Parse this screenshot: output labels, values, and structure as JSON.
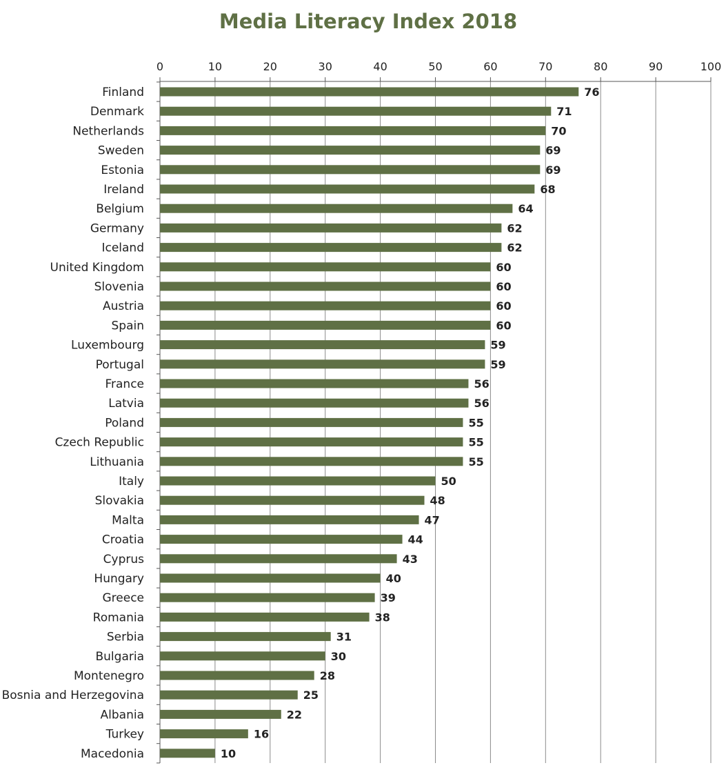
{
  "chart_data": {
    "type": "bar",
    "orientation": "horizontal",
    "title": "Media Literacy Index 2018",
    "xlabel": "",
    "ylabel": "",
    "xlim": [
      0,
      100
    ],
    "ticks": [
      "0",
      "10",
      "20",
      "30",
      "40",
      "50",
      "60",
      "70",
      "80",
      "90",
      "100"
    ],
    "grid": true,
    "bar_color": "#5f7045",
    "categories": [
      "Finland",
      "Denmark",
      "Netherlands",
      "Sweden",
      "Estonia",
      "Ireland",
      "Belgium",
      "Germany",
      "Iceland",
      "United Kingdom",
      "Slovenia",
      "Austria",
      "Spain",
      "Luxembourg",
      "Portugal",
      "France",
      "Latvia",
      "Poland",
      "Czech Republic",
      "Lithuania",
      "Italy",
      "Slovakia",
      "Malta",
      "Croatia",
      "Cyprus",
      "Hungary",
      "Greece",
      "Romania",
      "Serbia",
      "Bulgaria",
      "Montenegro",
      "Bosnia and Herzegovina",
      "Albania",
      "Turkey",
      "Macedonia"
    ],
    "values": [
      76,
      71,
      70,
      69,
      69,
      68,
      64,
      62,
      62,
      60,
      60,
      60,
      60,
      59,
      59,
      56,
      56,
      55,
      55,
      55,
      50,
      48,
      47,
      44,
      43,
      40,
      39,
      38,
      31,
      30,
      28,
      25,
      22,
      16,
      10
    ]
  }
}
